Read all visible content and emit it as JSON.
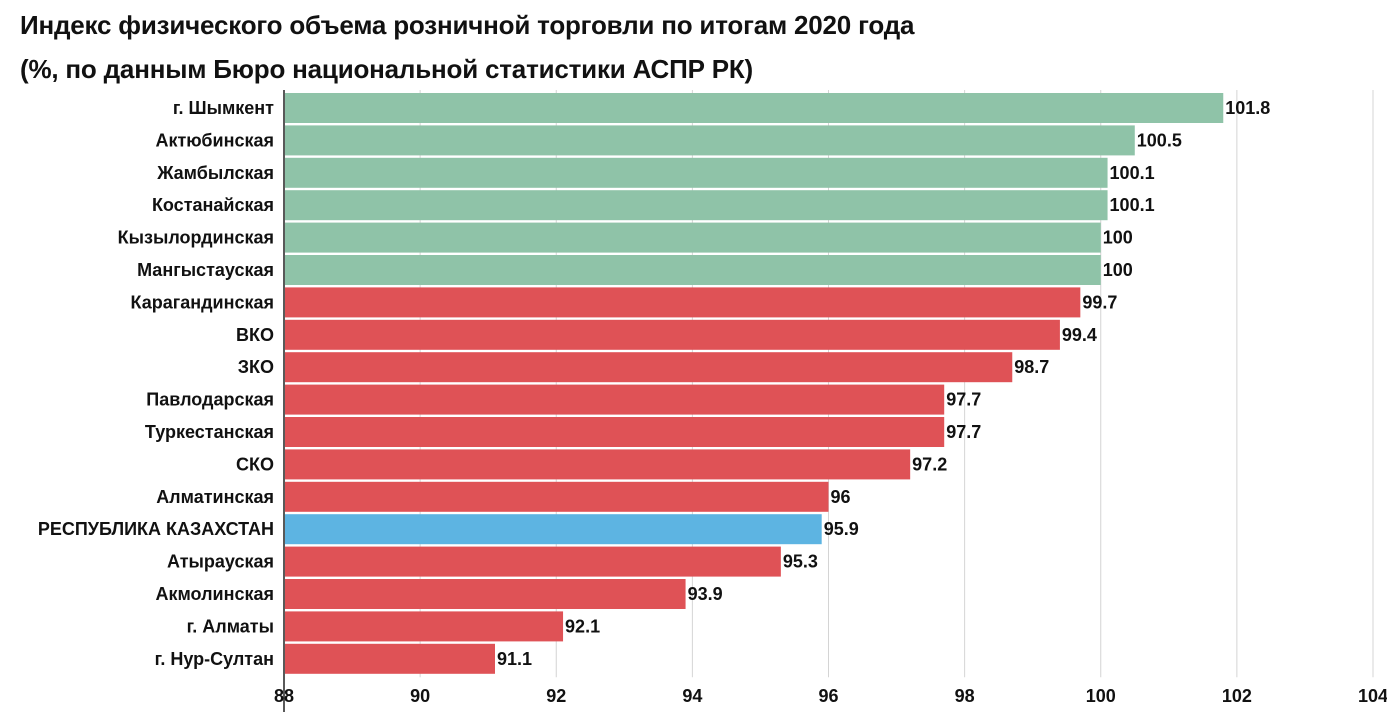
{
  "chart_data": {
    "type": "bar",
    "orientation": "horizontal",
    "title_lines": [
      "Индекс физического объема розничной торговли по итогам 2020 года",
      "(%, по данным Бюро национальной статистики АСПР РК)"
    ],
    "categories": [
      "г. Шымкент",
      "Актюбинская",
      "Жамбылская",
      "Костанайская",
      "Кызылординская",
      "Мангыстауская",
      "Карагандинская",
      "ВКО",
      "ЗКО",
      "Павлодарская",
      "Туркестанская",
      "СКО",
      "Алматинская",
      "РЕСПУБЛИКА КАЗАХСТАН",
      "Атырауская",
      "Акмолинская",
      "г. Алматы",
      "г. Нур-Султан"
    ],
    "values": [
      101.8,
      100.5,
      100.1,
      100.1,
      100,
      100,
      99.7,
      99.4,
      98.7,
      97.7,
      97.7,
      97.2,
      96,
      95.9,
      95.3,
      93.9,
      92.1,
      91.1
    ],
    "value_labels": [
      "101.8",
      "100.5",
      "100.1",
      "100.1",
      "100",
      "100",
      "99.7",
      "99.4",
      "98.7",
      "97.7",
      "97.7",
      "97.2",
      "96",
      "95.9",
      "95.3",
      "93.9",
      "92.1",
      "91.1"
    ],
    "bar_colors": [
      "#8fc3a8",
      "#8fc3a8",
      "#8fc3a8",
      "#8fc3a8",
      "#8fc3a8",
      "#8fc3a8",
      "#df5256",
      "#df5256",
      "#df5256",
      "#df5256",
      "#df5256",
      "#df5256",
      "#df5256",
      "#5db4e2",
      "#df5256",
      "#df5256",
      "#df5256",
      "#df5256"
    ],
    "xlim": [
      88,
      104
    ],
    "xticks": [
      88,
      90,
      92,
      94,
      96,
      98,
      100,
      102,
      104
    ],
    "xtick_labels": [
      "88",
      "90",
      "92",
      "94",
      "96",
      "98",
      "100",
      "102",
      "104"
    ],
    "grid": true,
    "xlabel": "",
    "ylabel": ""
  }
}
